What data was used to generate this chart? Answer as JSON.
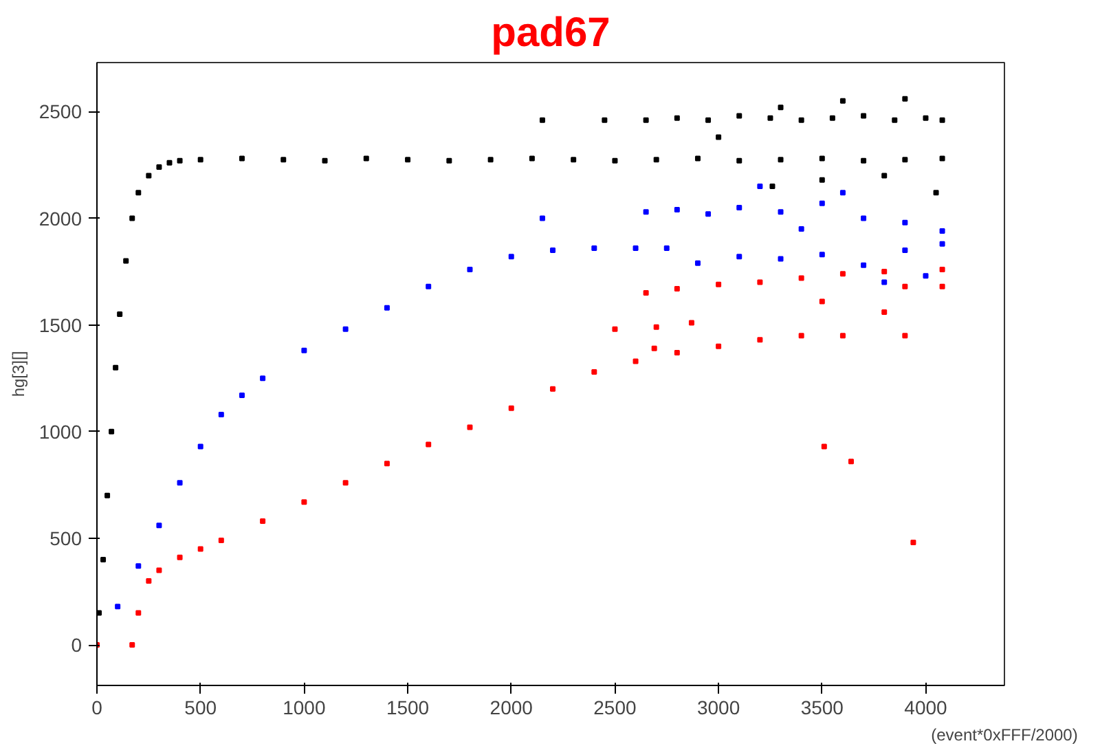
{
  "chart_data": {
    "type": "scatter",
    "title": "pad67",
    "xlabel": "(event*0xFFF/2000)",
    "ylabel": "hg[3][]",
    "xlim": [
      0,
      4380
    ],
    "ylim": [
      -190,
      2730
    ],
    "xticks": [
      0,
      500,
      1000,
      1500,
      2000,
      2500,
      3000,
      3500,
      4000
    ],
    "yticks": [
      0,
      500,
      1000,
      1500,
      2000,
      2500
    ],
    "grid": false,
    "marker": "square",
    "series": [
      {
        "color": "#000000",
        "x": [
          10,
          30,
          50,
          70,
          90,
          110,
          140,
          170,
          200,
          250,
          300,
          350,
          400,
          500,
          700,
          900,
          1100,
          1300,
          1500,
          1700,
          1900,
          2100,
          2300,
          2500,
          2700,
          2900,
          3100,
          3300,
          3500,
          3700,
          3900,
          4080,
          2650,
          2800,
          2950,
          3100,
          3250,
          3400,
          3550,
          3700,
          3850,
          4000,
          4080,
          3000,
          3300,
          3600,
          3900,
          3260,
          3500,
          3800,
          4050,
          2150,
          2450
        ],
        "values": [
          150,
          400,
          700,
          1000,
          1300,
          1550,
          1800,
          2000,
          2120,
          2200,
          2240,
          2260,
          2270,
          2275,
          2280,
          2275,
          2270,
          2280,
          2275,
          2270,
          2275,
          2280,
          2275,
          2270,
          2275,
          2280,
          2270,
          2275,
          2280,
          2270,
          2275,
          2280,
          2460,
          2470,
          2460,
          2480,
          2470,
          2460,
          2470,
          2480,
          2460,
          2470,
          2460,
          2380,
          2520,
          2550,
          2560,
          2150,
          2180,
          2200,
          2120,
          2460,
          2460
        ]
      },
      {
        "color": "#0000ff",
        "x": [
          100,
          200,
          300,
          400,
          500,
          600,
          700,
          800,
          1000,
          1200,
          1400,
          1600,
          1800,
          2000,
          2200,
          2400,
          2600,
          2750,
          2650,
          2800,
          2950,
          3100,
          3300,
          3500,
          3700,
          3900,
          4080,
          2900,
          3100,
          3300,
          3500,
          3700,
          3900,
          4080,
          3200,
          3600,
          3800,
          4000,
          3400,
          2150
        ],
        "values": [
          180,
          370,
          560,
          760,
          930,
          1080,
          1170,
          1250,
          1380,
          1480,
          1580,
          1680,
          1760,
          1820,
          1850,
          1860,
          1860,
          1860,
          2030,
          2040,
          2020,
          2050,
          2030,
          2070,
          2000,
          1980,
          1940,
          1790,
          1820,
          1810,
          1830,
          1780,
          1850,
          1880,
          2150,
          2120,
          1700,
          1730,
          1950,
          2000
        ]
      },
      {
        "color": "#ff0000",
        "x": [
          0,
          170,
          200,
          250,
          300,
          400,
          500,
          600,
          800,
          1000,
          1200,
          1400,
          1600,
          1800,
          2000,
          2200,
          2400,
          2600,
          2800,
          3000,
          3200,
          3400,
          3600,
          3900,
          2650,
          2800,
          3000,
          3200,
          3400,
          3600,
          3800,
          4080,
          3900,
          4080,
          2500,
          2700,
          2870,
          3500,
          3800,
          2690,
          3510,
          3640,
          3940
        ],
        "values": [
          0,
          0,
          150,
          300,
          350,
          410,
          450,
          490,
          580,
          670,
          760,
          850,
          940,
          1020,
          1110,
          1200,
          1280,
          1330,
          1370,
          1400,
          1430,
          1450,
          1450,
          1450,
          1650,
          1670,
          1690,
          1700,
          1720,
          1740,
          1750,
          1760,
          1680,
          1680,
          1480,
          1490,
          1510,
          1610,
          1560,
          1390,
          930,
          860,
          480
        ]
      }
    ]
  }
}
